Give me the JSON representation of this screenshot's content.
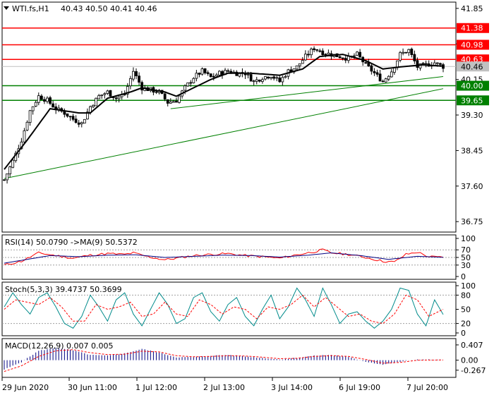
{
  "header": {
    "symbol": "WTI.fs,H1",
    "open": "40.43",
    "high": "40.50",
    "low": "40.41",
    "close": "40.46"
  },
  "chart_data": [
    {
      "type": "candlestick",
      "y_ticks": [
        "41.85",
        "41.00",
        "40.15",
        "39.30",
        "38.45",
        "37.60",
        "36.75"
      ],
      "ylim": [
        36.5,
        42.0
      ],
      "last_price": 40.46,
      "last_price_label": "40.46",
      "x_ticks": [
        "29 Jun 2020",
        "30 Jun 11:00",
        "1 Jul 12:00",
        "2 Jul 13:00",
        "3 Jul 14:00",
        "6 Jul 19:00",
        "7 Jul 20:00"
      ],
      "levels": [
        {
          "label": "41.38",
          "value": 41.38,
          "color": "#ff0000"
        },
        {
          "label": "40.98",
          "value": 40.98,
          "color": "#ff0000"
        },
        {
          "label": "40.63",
          "value": 40.63,
          "color": "#ff0000"
        },
        {
          "label": "40.00",
          "value": 40.0,
          "color": "#008000"
        },
        {
          "label": "39.65",
          "value": 39.65,
          "color": "#008000"
        }
      ],
      "trendlines": [
        {
          "from": [
            0,
            37.78
          ],
          "to": [
            153,
            39.93
          ],
          "color": "#008000"
        },
        {
          "from": [
            58,
            39.45
          ],
          "to": [
            153,
            40.22
          ],
          "color": "#008000"
        }
      ],
      "close_waypoints": [
        [
          0,
          37.75
        ],
        [
          3,
          38.2
        ],
        [
          6,
          38.7
        ],
        [
          9,
          39.4
        ],
        [
          12,
          39.75
        ],
        [
          15,
          39.65
        ],
        [
          18,
          39.45
        ],
        [
          21,
          39.35
        ],
        [
          24,
          39.2
        ],
        [
          27,
          39.1
        ],
        [
          30,
          39.5
        ],
        [
          33,
          39.75
        ],
        [
          36,
          39.85
        ],
        [
          39,
          39.7
        ],
        [
          42,
          39.8
        ],
        [
          45,
          40.35
        ],
        [
          48,
          39.95
        ],
        [
          51,
          39.9
        ],
        [
          54,
          39.85
        ],
        [
          57,
          39.6
        ],
        [
          60,
          39.65
        ],
        [
          63,
          39.95
        ],
        [
          66,
          40.2
        ],
        [
          69,
          40.35
        ],
        [
          72,
          40.2
        ],
        [
          75,
          40.3
        ],
        [
          78,
          40.35
        ],
        [
          81,
          40.3
        ],
        [
          84,
          40.3
        ],
        [
          87,
          40.1
        ],
        [
          90,
          40.2
        ],
        [
          93,
          40.25
        ],
        [
          96,
          40.1
        ],
        [
          99,
          40.35
        ],
        [
          102,
          40.45
        ],
        [
          105,
          40.7
        ],
        [
          108,
          40.9
        ],
        [
          111,
          40.8
        ],
        [
          114,
          40.75
        ],
        [
          117,
          40.7
        ],
        [
          120,
          40.65
        ],
        [
          123,
          40.75
        ],
        [
          126,
          40.5
        ],
        [
          129,
          40.3
        ],
        [
          132,
          40.1
        ],
        [
          135,
          40.35
        ],
        [
          138,
          40.75
        ],
        [
          141,
          40.85
        ],
        [
          144,
          40.45
        ],
        [
          147,
          40.5
        ],
        [
          150,
          40.55
        ],
        [
          153,
          40.46
        ]
      ],
      "ma_waypoints": [
        [
          0,
          38.0
        ],
        [
          8,
          38.7
        ],
        [
          16,
          39.45
        ],
        [
          26,
          39.35
        ],
        [
          30,
          39.35
        ],
        [
          36,
          39.7
        ],
        [
          44,
          39.85
        ],
        [
          48,
          39.95
        ],
        [
          56,
          39.85
        ],
        [
          60,
          39.75
        ],
        [
          66,
          39.95
        ],
        [
          72,
          40.15
        ],
        [
          78,
          40.3
        ],
        [
          86,
          40.3
        ],
        [
          96,
          40.25
        ],
        [
          104,
          40.4
        ],
        [
          110,
          40.7
        ],
        [
          118,
          40.75
        ],
        [
          126,
          40.6
        ],
        [
          132,
          40.4
        ],
        [
          138,
          40.45
        ],
        [
          146,
          40.5
        ],
        [
          153,
          40.47
        ]
      ],
      "bar_count": 154
    },
    {
      "type": "line",
      "label": "RSI(14) 50.0790 ->MA(9) 50.5372",
      "y_ticks": [
        "100",
        "70",
        "50",
        "30",
        "0"
      ],
      "ylim": [
        0,
        100
      ],
      "levels": [
        70,
        50,
        30
      ],
      "series": [
        {
          "color": "#ff0000",
          "waypoints": [
            [
              0,
              30
            ],
            [
              6,
              40
            ],
            [
              12,
              62
            ],
            [
              18,
              55
            ],
            [
              24,
              48
            ],
            [
              30,
              56
            ],
            [
              36,
              60
            ],
            [
              42,
              58
            ],
            [
              45,
              62
            ],
            [
              50,
              52
            ],
            [
              56,
              44
            ],
            [
              60,
              48
            ],
            [
              66,
              55
            ],
            [
              72,
              58
            ],
            [
              78,
              60
            ],
            [
              84,
              55
            ],
            [
              90,
              52
            ],
            [
              96,
              48
            ],
            [
              102,
              57
            ],
            [
              108,
              65
            ],
            [
              111,
              70
            ],
            [
              114,
              62
            ],
            [
              120,
              58
            ],
            [
              126,
              50
            ],
            [
              132,
              40
            ],
            [
              136,
              38
            ],
            [
              140,
              58
            ],
            [
              144,
              64
            ],
            [
              148,
              52
            ],
            [
              153,
              50
            ]
          ]
        },
        {
          "color": "#000080",
          "waypoints": [
            [
              0,
              35
            ],
            [
              8,
              45
            ],
            [
              16,
              55
            ],
            [
              26,
              52
            ],
            [
              36,
              56
            ],
            [
              46,
              57
            ],
            [
              56,
              50
            ],
            [
              66,
              53
            ],
            [
              76,
              56
            ],
            [
              86,
              55
            ],
            [
              96,
              51
            ],
            [
              106,
              56
            ],
            [
              114,
              62
            ],
            [
              124,
              55
            ],
            [
              134,
              45
            ],
            [
              144,
              53
            ],
            [
              153,
              50.5
            ]
          ]
        }
      ]
    },
    {
      "type": "line",
      "label": "Stoch(5,3,3) 39.4737 50.3699",
      "y_ticks": [
        "100",
        "80",
        "50",
        "20",
        "0"
      ],
      "ylim": [
        0,
        100
      ],
      "levels": [
        80,
        20
      ],
      "series": [
        {
          "color": "#008b8b",
          "waypoints": [
            [
              0,
              55
            ],
            [
              3,
              85
            ],
            [
              6,
              60
            ],
            [
              9,
              40
            ],
            [
              12,
              75
            ],
            [
              15,
              85
            ],
            [
              18,
              55
            ],
            [
              21,
              20
            ],
            [
              24,
              10
            ],
            [
              27,
              35
            ],
            [
              30,
              80
            ],
            [
              33,
              55
            ],
            [
              36,
              25
            ],
            [
              39,
              70
            ],
            [
              42,
              85
            ],
            [
              45,
              40
            ],
            [
              48,
              15
            ],
            [
              51,
              50
            ],
            [
              54,
              85
            ],
            [
              57,
              60
            ],
            [
              60,
              20
            ],
            [
              63,
              30
            ],
            [
              66,
              75
            ],
            [
              69,
              85
            ],
            [
              72,
              45
            ],
            [
              75,
              25
            ],
            [
              78,
              60
            ],
            [
              81,
              75
            ],
            [
              84,
              35
            ],
            [
              87,
              15
            ],
            [
              90,
              50
            ],
            [
              93,
              80
            ],
            [
              96,
              30
            ],
            [
              99,
              55
            ],
            [
              102,
              95
            ],
            [
              105,
              70
            ],
            [
              108,
              35
            ],
            [
              111,
              95
            ],
            [
              114,
              60
            ],
            [
              117,
              20
            ],
            [
              120,
              40
            ],
            [
              123,
              45
            ],
            [
              126,
              25
            ],
            [
              129,
              10
            ],
            [
              132,
              25
            ],
            [
              135,
              50
            ],
            [
              138,
              95
            ],
            [
              141,
              90
            ],
            [
              144,
              40
            ],
            [
              147,
              15
            ],
            [
              150,
              70
            ],
            [
              153,
              39
            ]
          ]
        },
        {
          "color": "#ff0000",
          "waypoints": [
            [
              0,
              50
            ],
            [
              4,
              70
            ],
            [
              8,
              65
            ],
            [
              12,
              60
            ],
            [
              16,
              75
            ],
            [
              20,
              55
            ],
            [
              24,
              25
            ],
            [
              28,
              25
            ],
            [
              32,
              60
            ],
            [
              36,
              50
            ],
            [
              40,
              55
            ],
            [
              44,
              65
            ],
            [
              48,
              35
            ],
            [
              52,
              40
            ],
            [
              56,
              65
            ],
            [
              60,
              40
            ],
            [
              64,
              35
            ],
            [
              68,
              70
            ],
            [
              72,
              60
            ],
            [
              76,
              40
            ],
            [
              80,
              55
            ],
            [
              84,
              50
            ],
            [
              88,
              30
            ],
            [
              92,
              55
            ],
            [
              96,
              50
            ],
            [
              100,
              60
            ],
            [
              104,
              80
            ],
            [
              108,
              55
            ],
            [
              112,
              75
            ],
            [
              116,
              55
            ],
            [
              120,
              35
            ],
            [
              124,
              40
            ],
            [
              128,
              25
            ],
            [
              132,
              20
            ],
            [
              136,
              40
            ],
            [
              140,
              80
            ],
            [
              144,
              70
            ],
            [
              148,
              35
            ],
            [
              153,
              50
            ]
          ]
        }
      ]
    },
    {
      "type": "bar",
      "label": "MACD(12,26,9) 0.007 0.005",
      "y_ticks": [
        "0.407",
        "0.00",
        "-0.267"
      ],
      "ylim": [
        -0.42,
        0.5
      ],
      "histogram_waypoints": [
        [
          0,
          -0.25
        ],
        [
          6,
          -0.05
        ],
        [
          12,
          0.25
        ],
        [
          18,
          0.33
        ],
        [
          24,
          0.26
        ],
        [
          30,
          0.14
        ],
        [
          36,
          0.12
        ],
        [
          42,
          0.18
        ],
        [
          48,
          0.3
        ],
        [
          54,
          0.2
        ],
        [
          60,
          0.08
        ],
        [
          66,
          0.08
        ],
        [
          72,
          0.12
        ],
        [
          78,
          0.14
        ],
        [
          84,
          0.1
        ],
        [
          90,
          0.06
        ],
        [
          96,
          0.02
        ],
        [
          102,
          0.06
        ],
        [
          108,
          0.12
        ],
        [
          114,
          0.14
        ],
        [
          120,
          0.08
        ],
        [
          126,
          -0.04
        ],
        [
          132,
          -0.12
        ],
        [
          138,
          -0.04
        ],
        [
          144,
          0.02
        ],
        [
          153,
          0.007
        ]
      ],
      "signal_waypoints": [
        [
          0,
          -0.3
        ],
        [
          6,
          -0.15
        ],
        [
          12,
          0.1
        ],
        [
          18,
          0.25
        ],
        [
          24,
          0.28
        ],
        [
          30,
          0.2
        ],
        [
          36,
          0.15
        ],
        [
          42,
          0.16
        ],
        [
          48,
          0.24
        ],
        [
          54,
          0.22
        ],
        [
          60,
          0.12
        ],
        [
          66,
          0.09
        ],
        [
          72,
          0.1
        ],
        [
          78,
          0.12
        ],
        [
          84,
          0.11
        ],
        [
          90,
          0.08
        ],
        [
          96,
          0.04
        ],
        [
          102,
          0.05
        ],
        [
          108,
          0.1
        ],
        [
          114,
          0.12
        ],
        [
          120,
          0.1
        ],
        [
          126,
          0.02
        ],
        [
          132,
          -0.08
        ],
        [
          138,
          -0.06
        ],
        [
          144,
          0.0
        ],
        [
          153,
          0.005
        ]
      ]
    }
  ]
}
